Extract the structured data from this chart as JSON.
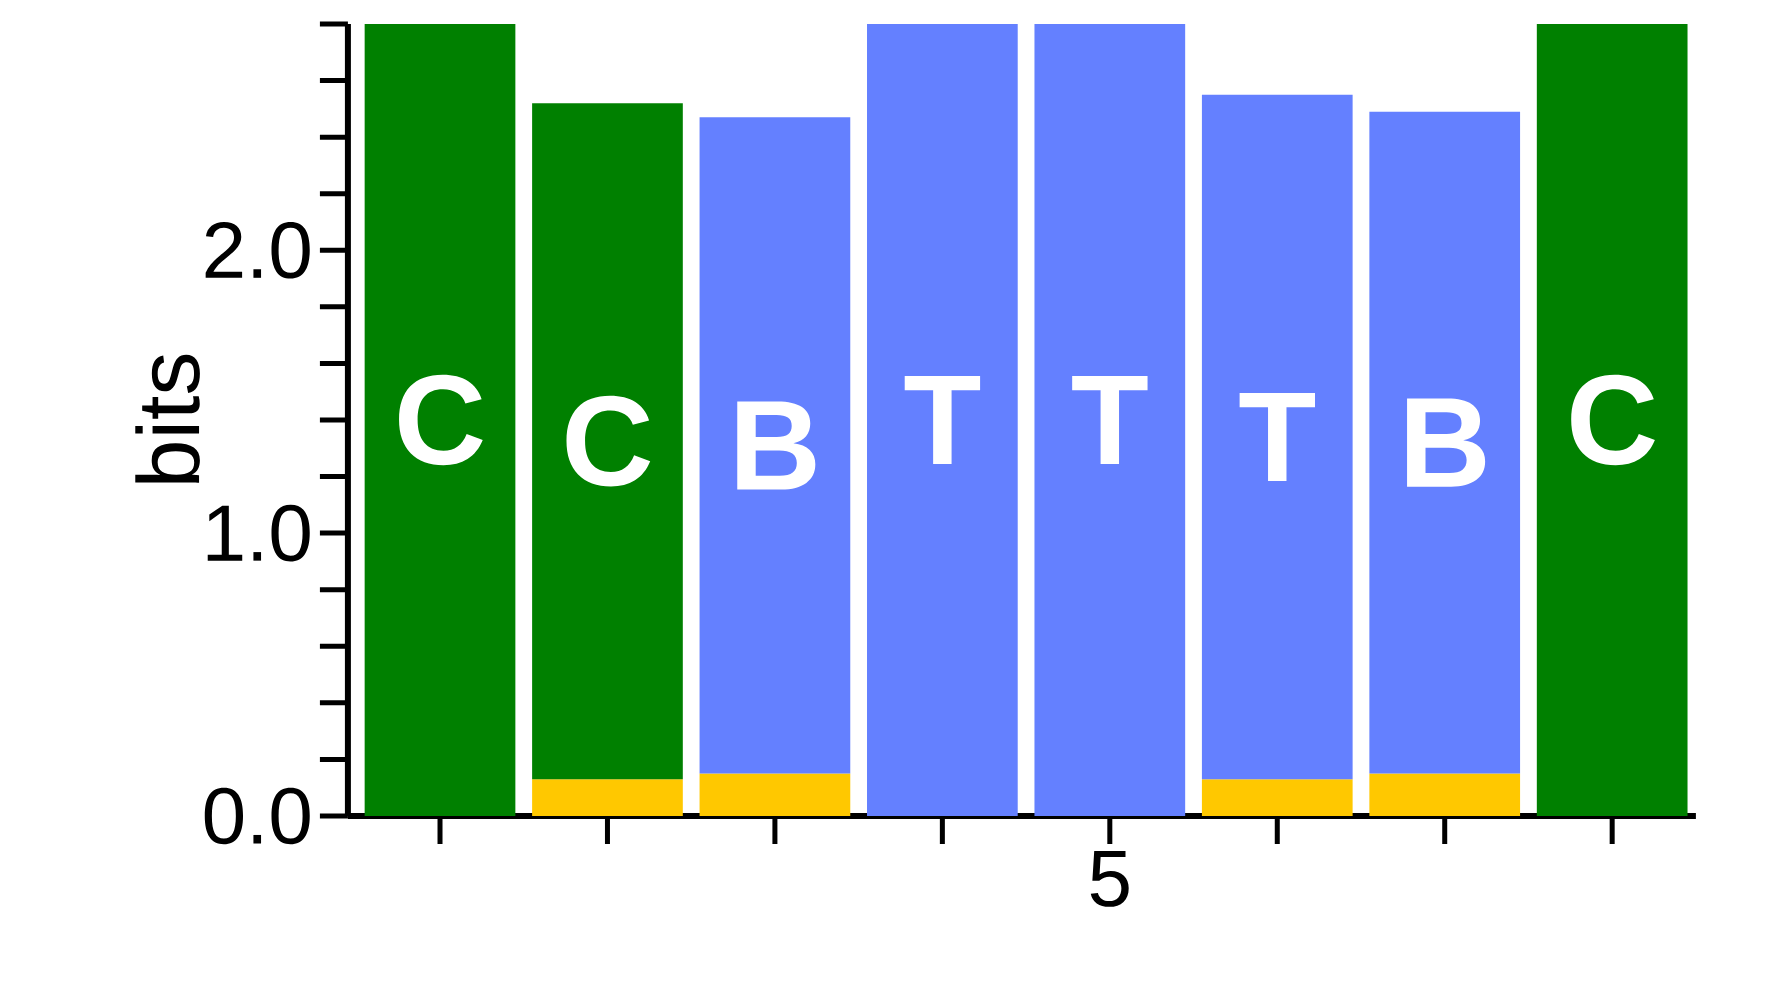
{
  "chart_data": {
    "type": "bar",
    "stacked": true,
    "ylabel": "bits",
    "categories": [
      null,
      null,
      null,
      null,
      "5",
      null,
      null,
      null
    ],
    "ylim": [
      0,
      2.8
    ],
    "yticks": [
      {
        "value": 0,
        "label": "0.0"
      },
      {
        "value": 0.2,
        "label": null
      },
      {
        "value": 0.4,
        "label": null
      },
      {
        "value": 0.6,
        "label": null
      },
      {
        "value": 0.8,
        "label": null
      },
      {
        "value": 1,
        "label": "1.0"
      },
      {
        "value": 1.2,
        "label": null
      },
      {
        "value": 1.4,
        "label": null
      },
      {
        "value": 1.6,
        "label": null
      },
      {
        "value": 1.8,
        "label": null
      },
      {
        "value": 2,
        "label": "2.0"
      },
      {
        "value": 2.2,
        "label": null
      },
      {
        "value": 2.4,
        "label": null
      },
      {
        "value": 2.6,
        "label": null
      },
      {
        "value": 2.8,
        "label": null
      }
    ],
    "series": [
      {
        "color": "#ffc800",
        "values": [
          null,
          0.13,
          0.15,
          null,
          null,
          0.13,
          0.15,
          null
        ]
      },
      {
        "name": "C",
        "color": "#008000",
        "values": [
          2.8,
          2.39,
          null,
          null,
          null,
          null,
          null,
          2.8
        ]
      },
      {
        "name": "B",
        "color": "#6480ff",
        "values": [
          null,
          null,
          2.32,
          null,
          null,
          null,
          2.34,
          null
        ]
      },
      {
        "name": "T",
        "color": "#6480ff",
        "values": [
          null,
          null,
          null,
          2.8,
          2.8,
          2.42,
          null,
          null
        ]
      }
    ]
  }
}
